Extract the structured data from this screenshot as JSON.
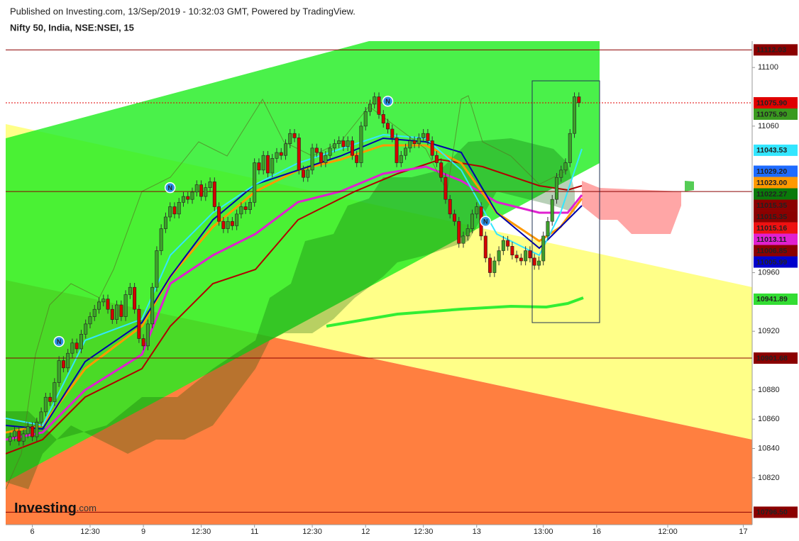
{
  "chart_data": {
    "type": "candlestick",
    "subtitle": "Published on Investing.com, 13/Sep/2019 - 10:32:03 GMT, Powered by TradingView.",
    "title": "Nifty 50, India, NSE:NSEI, 15",
    "logo": {
      "brand": "Investing",
      "suffix": ".com"
    },
    "up_color": "#3da02b",
    "down_color": "#d40000",
    "xlim": [
      -6,
      162
    ],
    "ylim": [
      10788,
      11118
    ],
    "yticks": [
      10820,
      10840,
      10860,
      10880,
      10920,
      10960,
      11060,
      11100
    ],
    "xticks": [
      {
        "value": 0,
        "label": "6"
      },
      {
        "value": 13,
        "label": "12:30"
      },
      {
        "value": 25,
        "label": "9"
      },
      {
        "value": 38,
        "label": "12:30"
      },
      {
        "value": 50,
        "label": "11"
      },
      {
        "value": 63,
        "label": "12:30"
      },
      {
        "value": 75,
        "label": "12"
      },
      {
        "value": 88,
        "label": "12:30"
      },
      {
        "value": 100,
        "label": "13"
      },
      {
        "value": 115,
        "label": "13:00"
      },
      {
        "value": 127,
        "label": "16"
      },
      {
        "value": 143,
        "label": "12:00"
      },
      {
        "value": 160,
        "label": "17"
      }
    ],
    "x": [
      -5,
      -4,
      -3,
      -2,
      -1,
      0,
      1,
      2,
      3,
      4,
      5,
      6,
      7,
      8,
      9,
      10,
      11,
      12,
      13,
      14,
      15,
      16,
      17,
      18,
      19,
      20,
      21,
      22,
      23,
      24,
      25,
      26,
      27,
      28,
      29,
      30,
      31,
      32,
      33,
      34,
      35,
      36,
      37,
      38,
      39,
      40,
      41,
      42,
      43,
      44,
      45,
      46,
      47,
      48,
      49,
      50,
      51,
      52,
      53,
      54,
      55,
      56,
      57,
      58,
      59,
      60,
      61,
      62,
      63,
      64,
      65,
      66,
      67,
      68,
      69,
      70,
      71,
      72,
      73,
      74,
      75,
      76,
      77,
      78,
      79,
      80,
      81,
      82,
      83,
      84,
      85,
      86,
      87,
      88,
      89,
      90,
      91,
      92,
      93,
      94,
      95,
      96,
      97,
      98,
      99,
      100,
      101,
      102,
      103,
      104,
      105,
      106,
      107,
      108,
      109,
      110,
      111,
      112,
      113,
      114,
      115,
      116,
      117,
      118,
      119,
      120,
      121,
      122,
      123
    ],
    "open": [
      10845,
      10848,
      10852,
      10845,
      10850,
      10855,
      10848,
      10858,
      10865,
      10875,
      10872,
      10885,
      10900,
      10895,
      10905,
      10912,
      10908,
      10918,
      10925,
      10930,
      10935,
      10940,
      10942,
      10935,
      10928,
      10938,
      10930,
      10945,
      10950,
      10935,
      10915,
      10910,
      10925,
      10950,
      10975,
      10990,
      10998,
      11005,
      11000,
      11008,
      11012,
      11010,
      11015,
      11020,
      11012,
      11018,
      11022,
      11005,
      10995,
      10990,
      10995,
      10992,
      11000,
      11005,
      11003,
      11008,
      11035,
      11030,
      11040,
      11028,
      11038,
      11042,
      11040,
      11048,
      11055,
      11052,
      11030,
      11025,
      11030,
      11045,
      11042,
      11035,
      11040,
      11045,
      11048,
      11050,
      11046,
      11050,
      11040,
      11035,
      11060,
      11070,
      11075,
      11080,
      11068,
      11062,
      11058,
      11052,
      11035,
      11040,
      11045,
      11050,
      11048,
      11052,
      11055,
      11050,
      11040,
      11035,
      11025,
      11010,
      11000,
      10995,
      10980,
      10985,
      10990,
      11000,
      11005,
      10985,
      10970,
      10960,
      10968,
      10975,
      10982,
      10978,
      10972,
      10970,
      10968,
      10975,
      10970,
      10965,
      10968,
      10985,
      10995,
      11010,
      11025,
      11030,
      11035,
      11055,
      11080
    ],
    "high": [
      10851,
      10855,
      10855,
      10853,
      10858,
      10858,
      10861,
      10868,
      10878,
      10878,
      10888,
      10903,
      10903,
      10908,
      10915,
      10915,
      10921,
      10928,
      10933,
      10938,
      10943,
      10945,
      10945,
      10938,
      10941,
      10941,
      10948,
      10953,
      10953,
      10938,
      10918,
      10928,
      10953,
      10978,
      10993,
      11001,
      11008,
      11008,
      11011,
      11015,
      11015,
      11018,
      11023,
      11023,
      11021,
      11025,
      11025,
      11008,
      10998,
      10998,
      10998,
      11003,
      11008,
      11008,
      11011,
      11038,
      11038,
      11043,
      11043,
      11041,
      11045,
      11045,
      11051,
      11058,
      11058,
      11055,
      11033,
      11033,
      11048,
      11048,
      11045,
      11043,
      11048,
      11051,
      11053,
      11053,
      11053,
      11053,
      11043,
      11063,
      11073,
      11078,
      11083,
      11083,
      11071,
      11065,
      11061,
      11055,
      11043,
      11048,
      11053,
      11053,
      11055,
      11058,
      11058,
      11053,
      11043,
      11038,
      11028,
      11013,
      11003,
      10998,
      10988,
      10993,
      11003,
      11008,
      11008,
      10988,
      10973,
      10971,
      10978,
      10985,
      10985,
      10981,
      10975,
      10973,
      10978,
      10978,
      10973,
      10971,
      10988,
      10998,
      11013,
      11028,
      11033,
      11038,
      11058,
      11083,
      11083
    ],
    "low": [
      10842,
      10845,
      10842,
      10842,
      10847,
      10845,
      10845,
      10855,
      10862,
      10869,
      10869,
      10882,
      10892,
      10892,
      10902,
      10905,
      10905,
      10915,
      10922,
      10927,
      10932,
      10937,
      10932,
      10925,
      10925,
      10927,
      10927,
      10942,
      10932,
      10912,
      10907,
      10907,
      10922,
      10947,
      10972,
      10987,
      10995,
      10997,
      10997,
      11005,
      11007,
      11007,
      11012,
      11009,
      11009,
      11015,
      11002,
      10992,
      10987,
      10987,
      10989,
      10989,
      10997,
      11000,
      11000,
      11005,
      11027,
      11027,
      11025,
      11025,
      11035,
      11037,
      11037,
      11045,
      11049,
      11027,
      11022,
      11022,
      11027,
      11039,
      11032,
      11032,
      11037,
      11042,
      11045,
      11043,
      11043,
      11037,
      11032,
      11032,
      11057,
      11067,
      11072,
      11065,
      11059,
      11055,
      11049,
      11032,
      11032,
      11037,
      11042,
      11045,
      11045,
      11049,
      11047,
      11037,
      11032,
      11022,
      11007,
      10997,
      10992,
      10977,
      10977,
      10982,
      10987,
      10997,
      10982,
      10967,
      10957,
      10957,
      10965,
      10972,
      10975,
      10969,
      10967,
      10965,
      10965,
      10967,
      10962,
      10962,
      10965,
      10982,
      10992,
      11007,
      11022,
      11027,
      11032,
      11052,
      11073
    ],
    "close": [
      10848,
      10852,
      10845,
      10850,
      10855,
      10848,
      10858,
      10865,
      10875,
      10872,
      10885,
      10900,
      10895,
      10905,
      10912,
      10908,
      10918,
      10925,
      10930,
      10935,
      10940,
      10942,
      10935,
      10928,
      10938,
      10930,
      10945,
      10950,
      10935,
      10915,
      10910,
      10925,
      10950,
      10975,
      10990,
      10998,
      11005,
      11000,
      11008,
      11012,
      11010,
      11015,
      11020,
      11012,
      11018,
      11022,
      11005,
      10995,
      10990,
      10995,
      10992,
      11000,
      11005,
      11003,
      11008,
      11035,
      11030,
      11040,
      11028,
      11038,
      11042,
      11040,
      11048,
      11055,
      11052,
      11030,
      11025,
      11030,
      11045,
      11042,
      11035,
      11040,
      11045,
      11048,
      11050,
      11046,
      11050,
      11040,
      11035,
      11060,
      11070,
      11075,
      11080,
      11068,
      11062,
      11058,
      11052,
      11035,
      11040,
      11045,
      11050,
      11048,
      11052,
      11055,
      11050,
      11040,
      11035,
      11025,
      11010,
      11000,
      10995,
      10980,
      10985,
      10990,
      11000,
      11005,
      10985,
      10970,
      10960,
      10968,
      10975,
      10982,
      10978,
      10972,
      10970,
      10968,
      10975,
      10970,
      10965,
      10968,
      10985,
      10995,
      11010,
      11025,
      11030,
      11035,
      11055,
      11080,
      11076
    ],
    "markers": [
      {
        "x": 6,
        "y": 10913,
        "label": "N"
      },
      {
        "x": 31,
        "y": 11018,
        "label": "N"
      },
      {
        "x": 80,
        "y": 11077,
        "label": "N"
      },
      {
        "x": 102,
        "y": 10995,
        "label": "N"
      }
    ],
    "price_labels": [
      {
        "value": 11112.03,
        "label": "11112.03",
        "color": "#8b0000",
        "line": "solid"
      },
      {
        "value": 11075.9,
        "label": "11075.90",
        "color": "#e00000",
        "line": "dotted"
      },
      {
        "value": 11075.9,
        "label": "11075.90",
        "color": "#3a9a1f"
      },
      {
        "value": 11043.53,
        "label": "11043.53",
        "color": "#33e6ff"
      },
      {
        "value": 11029.2,
        "label": "11029.20",
        "color": "#1e6bff"
      },
      {
        "value": 11023,
        "label": "11023.00",
        "color": "#ff9900"
      },
      {
        "value": 11022.27,
        "label": "11022.27",
        "color": "#0a7a0a"
      },
      {
        "value": 11015.35,
        "label": "11015.35",
        "color": "#8b0000",
        "line": "solid"
      },
      {
        "value": 11015.35,
        "label": "11015.35",
        "color": "#8b0000"
      },
      {
        "value": 11015.16,
        "label": "11015.16",
        "color": "#ee1111"
      },
      {
        "value": 11013.11,
        "label": "11013.11",
        "color": "#e020d0"
      },
      {
        "value": 11006.85,
        "label": "11006.85",
        "color": "#8b0000"
      },
      {
        "value": 11005.99,
        "label": "11005.99",
        "color": "#0000cc"
      },
      {
        "value": 10941.89,
        "label": "10941.89",
        "color": "#33dd33"
      },
      {
        "value": 10901.68,
        "label": "10901.68",
        "color": "#8b0000",
        "line": "solid"
      },
      {
        "value": 10796.5,
        "label": "10796.50",
        "color": "#8b0000",
        "line": "solid"
      }
    ]
  }
}
